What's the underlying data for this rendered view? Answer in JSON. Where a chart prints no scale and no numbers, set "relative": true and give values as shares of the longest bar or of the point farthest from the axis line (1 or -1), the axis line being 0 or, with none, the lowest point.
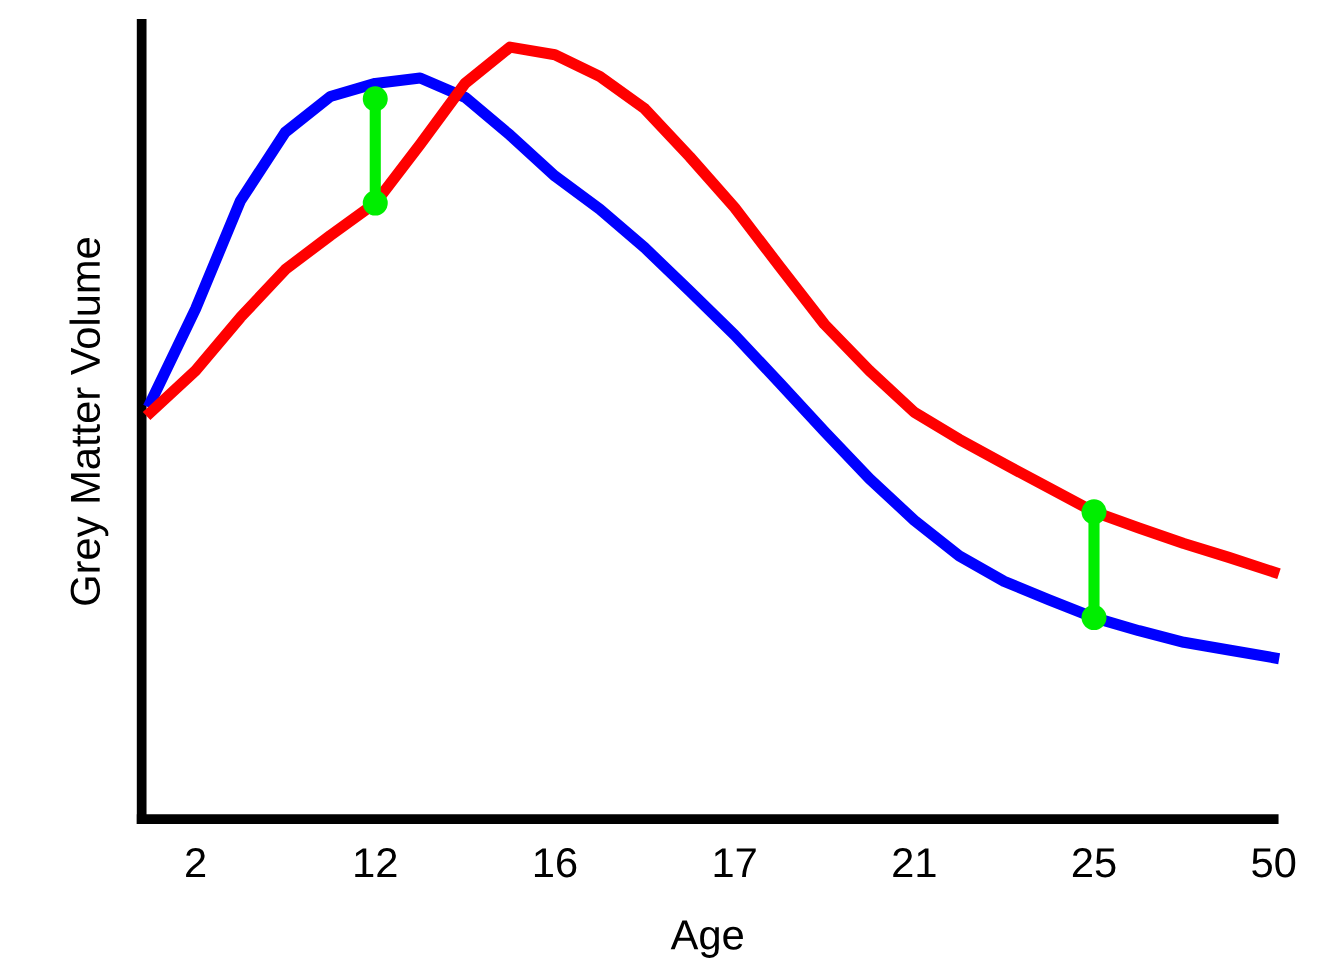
{
  "chart_data": {
    "type": "line",
    "xlabel": "Age",
    "ylabel": "Grey Matter Volume",
    "relative": true,
    "tick_labels": "x",
    "grid": false,
    "legend": false,
    "categories": [
      null,
      "2",
      null,
      null,
      null,
      "12",
      null,
      null,
      null,
      "16",
      null,
      null,
      null,
      "17",
      null,
      null,
      null,
      "21",
      null,
      null,
      null,
      "25",
      null,
      null,
      null,
      "50"
    ],
    "series": [
      {
        "color": "#0000ff",
        "values": [
          0.54,
          0.661,
          0.801,
          0.89,
          0.936,
          0.953,
          0.96,
          0.935,
          0.886,
          0.833,
          0.79,
          0.74,
          0.684,
          0.627,
          0.565,
          0.502,
          0.441,
          0.387,
          0.341,
          0.308,
          0.284,
          0.261,
          0.244,
          0.229,
          0.219,
          0.209
        ]
      },
      {
        "color": "#ff0000",
        "values": [
          0.527,
          0.581,
          0.65,
          0.712,
          0.756,
          0.798,
          0.874,
          0.953,
          1,
          0.99,
          0.962,
          0.92,
          0.858,
          0.792,
          0.716,
          0.641,
          0.581,
          0.527,
          0.492,
          0.46,
          0.429,
          0.398,
          0.377,
          0.357,
          0.339,
          0.32
        ]
      },
      {
        "color": "#00ee00",
        "marker": "circle",
        "x": [
          "12",
          "12"
        ],
        "values": [
          0.933,
          0.798
        ]
      },
      {
        "color": "#00ee00",
        "marker": "circle",
        "x": [
          "25",
          "25"
        ],
        "values": [
          0.398,
          0.261
        ]
      }
    ]
  }
}
